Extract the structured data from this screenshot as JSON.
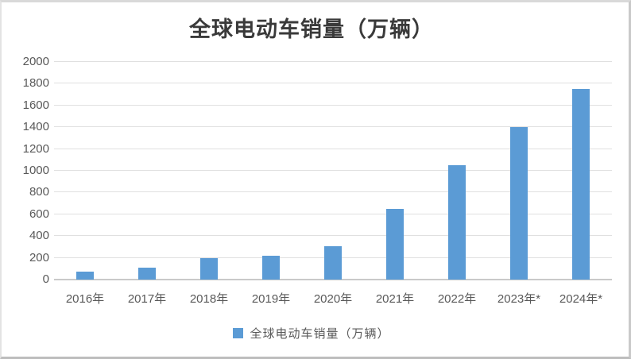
{
  "title": "全球电动车销量（万辆）",
  "legend": {
    "label": "全球电动车销量（万辆）",
    "swatch_color": "#5B9BD5"
  },
  "chart_data": {
    "type": "bar",
    "title": "全球电动车销量（万辆）",
    "categories": [
      "2016年",
      "2017年",
      "2018年",
      "2019年",
      "2020年",
      "2021年",
      "2022年",
      "2023年*",
      "2024年*"
    ],
    "values": [
      70,
      110,
      200,
      220,
      310,
      650,
      1050,
      1400,
      1750
    ],
    "series_name": "全球电动车销量（万辆）",
    "xlabel": "",
    "ylabel": "",
    "ylim": [
      0,
      2000
    ],
    "ytick_step": 200,
    "ytick_labels": [
      "0",
      "200",
      "400",
      "600",
      "800",
      "1000",
      "1200",
      "1400",
      "1600",
      "1800",
      "2000"
    ],
    "bar_color": "#5B9BD5",
    "gridline_color": "#E0E0E0",
    "zero_axis_color": "#C9C9C9",
    "tick_label_color": "#595959",
    "title_color": "#3A3A3A",
    "grid": "horizontal",
    "legend_position": "bottom"
  }
}
